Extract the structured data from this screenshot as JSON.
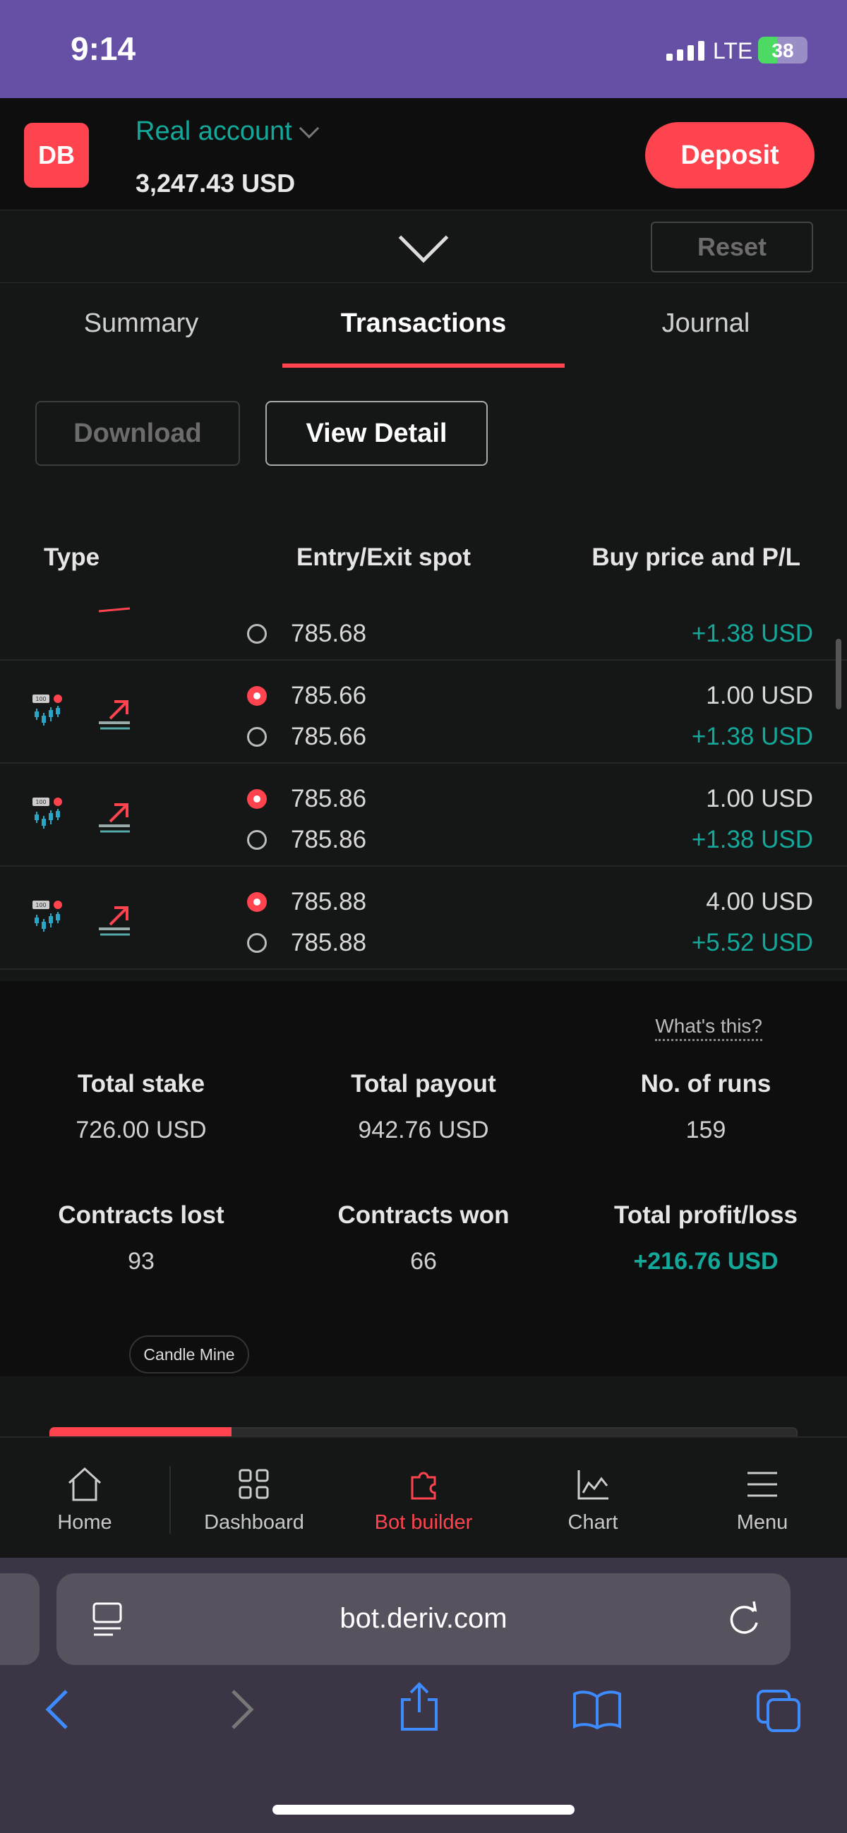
{
  "status_bar": {
    "time": "9:14",
    "network": "LTE",
    "battery": "38",
    "battery_level": 0.38
  },
  "header": {
    "logo_text": "DB",
    "account_type": "Real account",
    "balance": "3,247.43 USD",
    "deposit_label": "Deposit"
  },
  "panel": {
    "reset_label": "Reset"
  },
  "tabs": [
    {
      "label": "Summary",
      "active": false
    },
    {
      "label": "Transactions",
      "active": true
    },
    {
      "label": "Journal",
      "active": false
    }
  ],
  "actions": {
    "download_label": "Download",
    "view_detail_label": "View Detail"
  },
  "table": {
    "columns": [
      "Type",
      "Entry/Exit spot",
      "Buy price and P/L"
    ],
    "partial_row": {
      "exit_spot": "785.68",
      "pl": "+1.38 USD"
    },
    "rows": [
      {
        "entry_spot": "785.66",
        "exit_spot": "785.66",
        "buy_price": "1.00 USD",
        "pl": "+1.38 USD"
      },
      {
        "entry_spot": "785.86",
        "exit_spot": "785.86",
        "buy_price": "1.00 USD",
        "pl": "+1.38 USD"
      },
      {
        "entry_spot": "785.88",
        "exit_spot": "785.88",
        "buy_price": "4.00 USD",
        "pl": "+5.52 USD"
      }
    ]
  },
  "summary": {
    "whats_this": "What's this?",
    "total_stake_label": "Total stake",
    "total_stake": "726.00 USD",
    "total_payout_label": "Total payout",
    "total_payout": "942.76 USD",
    "runs_label": "No. of runs",
    "runs": "159",
    "lost_label": "Contracts lost",
    "lost": "93",
    "won_label": "Contracts won",
    "won": "66",
    "profit_label": "Total profit/loss",
    "profit": "+216.76 USD",
    "bot_chip": "Candle Mine"
  },
  "nav": [
    {
      "label": "Home",
      "icon": "home-icon",
      "active": false
    },
    {
      "label": "Dashboard",
      "icon": "dashboard-icon",
      "active": false
    },
    {
      "label": "Bot builder",
      "icon": "puzzle-icon",
      "active": true
    },
    {
      "label": "Chart",
      "icon": "chart-icon",
      "active": false
    },
    {
      "label": "Menu",
      "icon": "menu-icon",
      "active": false
    }
  ],
  "browser": {
    "url": "bot.deriv.com"
  },
  "colors": {
    "accent": "#ff444f",
    "profit": "#14a89b",
    "brand_purple": "#6650a6"
  }
}
